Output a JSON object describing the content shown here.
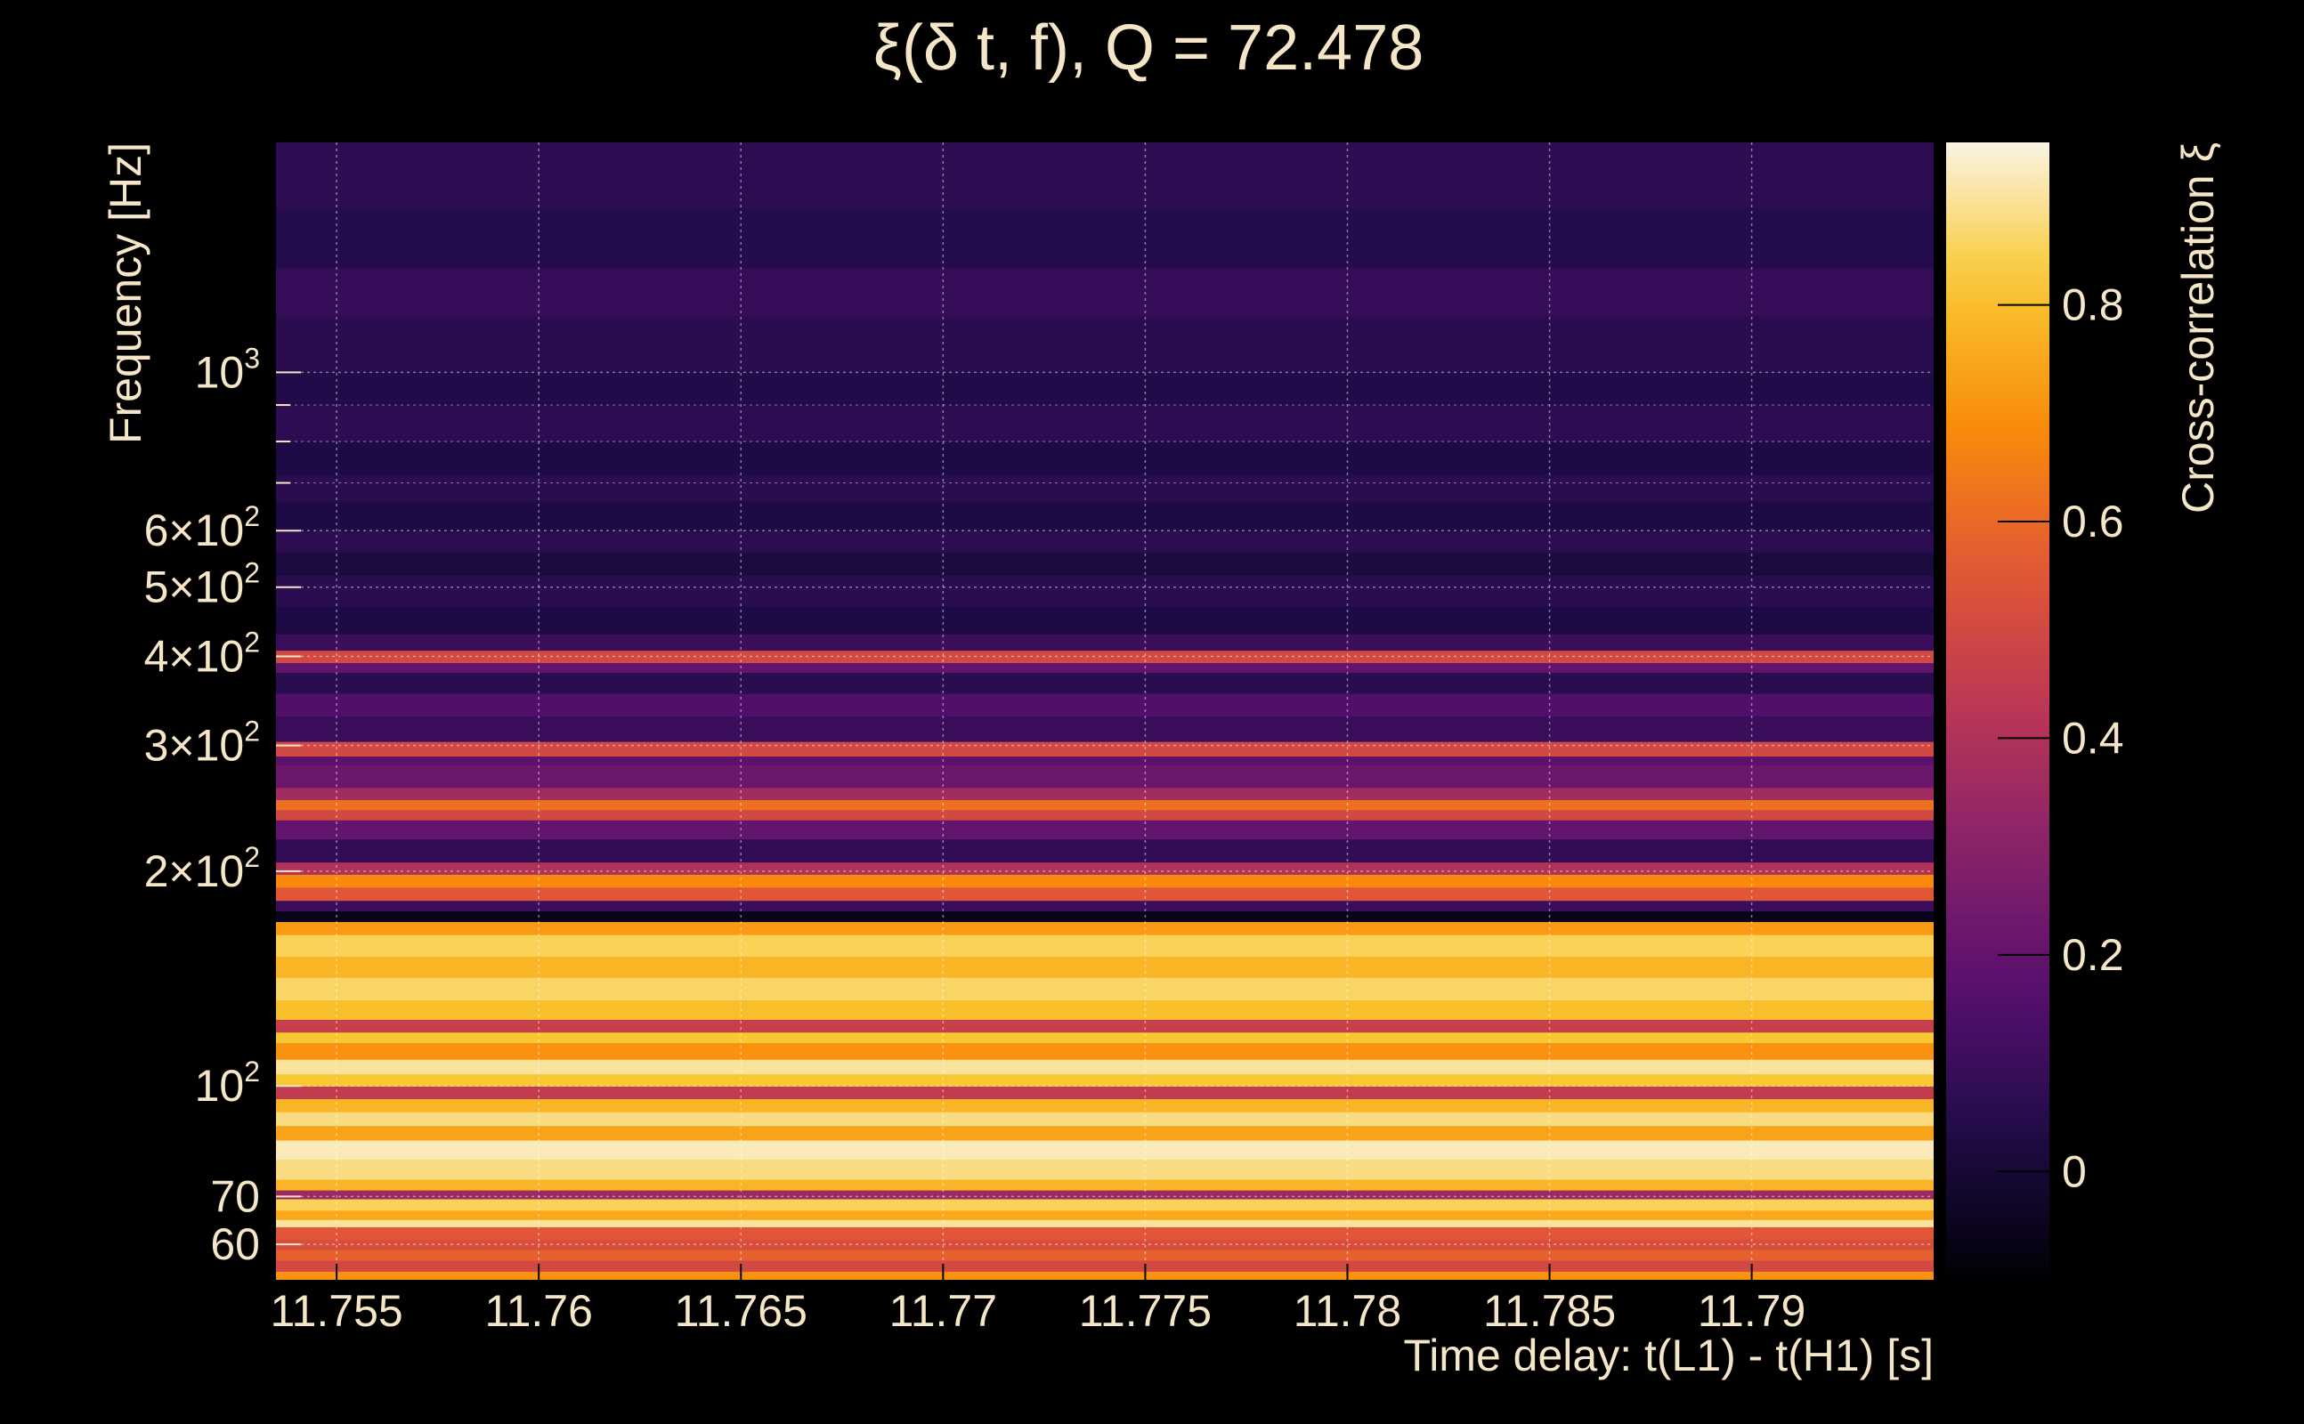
{
  "chart_data": {
    "type": "heatmap",
    "title": "ξ(δ t, f), Q = 72.478",
    "xlabel": "Time delay: t(L1) - t(H1) [s]",
    "ylabel": "Frequency [Hz]",
    "colorbar_label": "Cross-correlation ξ",
    "colormap": "inferno",
    "y_scale": "log",
    "grid": true,
    "xlim": [
      11.7535,
      11.7945
    ],
    "ylim": [
      53.5,
      2100
    ],
    "clim": [
      -0.1,
      0.95
    ],
    "x_ticks": [
      11.755,
      11.76,
      11.765,
      11.77,
      11.775,
      11.78,
      11.785,
      11.79
    ],
    "x_tick_labels": [
      "11.755",
      "11.76",
      "11.765",
      "11.77",
      "11.775",
      "11.78",
      "11.785",
      "11.79"
    ],
    "y_ticks": [
      {
        "value": 60,
        "mant": "60",
        "exp": ""
      },
      {
        "value": 70,
        "mant": "70",
        "exp": ""
      },
      {
        "value": 100,
        "mant": "10",
        "exp": "2"
      },
      {
        "value": 200,
        "mant": "2×10",
        "exp": "2"
      },
      {
        "value": 300,
        "mant": "3×10",
        "exp": "2"
      },
      {
        "value": 400,
        "mant": "4×10",
        "exp": "2"
      },
      {
        "value": 500,
        "mant": "5×10",
        "exp": "2"
      },
      {
        "value": 600,
        "mant": "6×10",
        "exp": "2"
      },
      {
        "value": 1000,
        "mant": "10",
        "exp": "3"
      }
    ],
    "y_minor_ticks": [
      700,
      800,
      900
    ],
    "colorbar_ticks": [
      0,
      0.2,
      0.4,
      0.6,
      0.8
    ],
    "colorbar_tick_labels": [
      "0",
      "0.2",
      "0.4",
      "0.6",
      "0.8"
    ],
    "frequency_bands": [
      {
        "f_low": 53.5,
        "f_high": 55,
        "xi": 0.7
      },
      {
        "f_low": 55,
        "f_high": 57,
        "xi": 0.5
      },
      {
        "f_low": 57,
        "f_high": 59,
        "xi": 0.58
      },
      {
        "f_low": 59,
        "f_high": 61,
        "xi": 0.52
      },
      {
        "f_low": 61,
        "f_high": 63.5,
        "xi": 0.55
      },
      {
        "f_low": 63.5,
        "f_high": 65,
        "xi": 0.9
      },
      {
        "f_low": 65,
        "f_high": 67,
        "xi": 0.75
      },
      {
        "f_low": 67,
        "f_high": 69.5,
        "xi": 0.85
      },
      {
        "f_low": 69.5,
        "f_high": 71.5,
        "xi": 0.35
      },
      {
        "f_low": 71.5,
        "f_high": 74,
        "xi": 0.78
      },
      {
        "f_low": 74,
        "f_high": 79,
        "xi": 0.88
      },
      {
        "f_low": 79,
        "f_high": 84,
        "xi": 0.92
      },
      {
        "f_low": 84,
        "f_high": 88,
        "xi": 0.74
      },
      {
        "f_low": 88,
        "f_high": 92,
        "xi": 0.88
      },
      {
        "f_low": 92,
        "f_high": 96,
        "xi": 0.78
      },
      {
        "f_low": 96,
        "f_high": 100,
        "xi": 0.45
      },
      {
        "f_low": 100,
        "f_high": 104,
        "xi": 0.82
      },
      {
        "f_low": 104,
        "f_high": 109,
        "xi": 0.9
      },
      {
        "f_low": 109,
        "f_high": 115,
        "xi": 0.7
      },
      {
        "f_low": 115,
        "f_high": 119,
        "xi": 0.82
      },
      {
        "f_low": 119,
        "f_high": 124,
        "xi": 0.46
      },
      {
        "f_low": 124,
        "f_high": 132,
        "xi": 0.8
      },
      {
        "f_low": 132,
        "f_high": 142,
        "xi": 0.86
      },
      {
        "f_low": 142,
        "f_high": 152,
        "xi": 0.78
      },
      {
        "f_low": 152,
        "f_high": 163,
        "xi": 0.85
      },
      {
        "f_low": 163,
        "f_high": 170,
        "xi": 0.72
      },
      {
        "f_low": 170,
        "f_high": 176,
        "xi": -0.05
      },
      {
        "f_low": 176,
        "f_high": 182,
        "xi": 0.1
      },
      {
        "f_low": 182,
        "f_high": 190,
        "xi": 0.55
      },
      {
        "f_low": 190,
        "f_high": 198,
        "xi": 0.68
      },
      {
        "f_low": 198,
        "f_high": 206,
        "xi": 0.4
      },
      {
        "f_low": 206,
        "f_high": 222,
        "xi": 0.08
      },
      {
        "f_low": 222,
        "f_high": 236,
        "xi": 0.2
      },
      {
        "f_low": 236,
        "f_high": 244,
        "xi": 0.5
      },
      {
        "f_low": 244,
        "f_high": 252,
        "xi": 0.62
      },
      {
        "f_low": 252,
        "f_high": 262,
        "xi": 0.36
      },
      {
        "f_low": 262,
        "f_high": 282,
        "xi": 0.22
      },
      {
        "f_low": 282,
        "f_high": 290,
        "xi": 0.18
      },
      {
        "f_low": 290,
        "f_high": 304,
        "xi": 0.5
      },
      {
        "f_low": 304,
        "f_high": 330,
        "xi": 0.1
      },
      {
        "f_low": 330,
        "f_high": 355,
        "xi": 0.15
      },
      {
        "f_low": 355,
        "f_high": 380,
        "xi": 0.06
      },
      {
        "f_low": 380,
        "f_high": 392,
        "xi": 0.2
      },
      {
        "f_low": 392,
        "f_high": 408,
        "xi": 0.5
      },
      {
        "f_low": 408,
        "f_high": 430,
        "xi": 0.1
      },
      {
        "f_low": 430,
        "f_high": 470,
        "xi": 0.03
      },
      {
        "f_low": 470,
        "f_high": 520,
        "xi": 0.06
      },
      {
        "f_low": 520,
        "f_high": 560,
        "xi": 0.02
      },
      {
        "f_low": 560,
        "f_high": 600,
        "xi": 0.07
      },
      {
        "f_low": 600,
        "f_high": 660,
        "xi": 0.03
      },
      {
        "f_low": 660,
        "f_high": 720,
        "xi": 0.06
      },
      {
        "f_low": 720,
        "f_high": 800,
        "xi": 0.03
      },
      {
        "f_low": 800,
        "f_high": 900,
        "xi": 0.07
      },
      {
        "f_low": 900,
        "f_high": 1000,
        "xi": 0.04
      },
      {
        "f_low": 1000,
        "f_high": 1200,
        "xi": 0.06
      },
      {
        "f_low": 1200,
        "f_high": 1400,
        "xi": 0.09
      },
      {
        "f_low": 1400,
        "f_high": 1700,
        "xi": 0.05
      },
      {
        "f_low": 1700,
        "f_high": 2100,
        "xi": 0.07
      }
    ]
  }
}
